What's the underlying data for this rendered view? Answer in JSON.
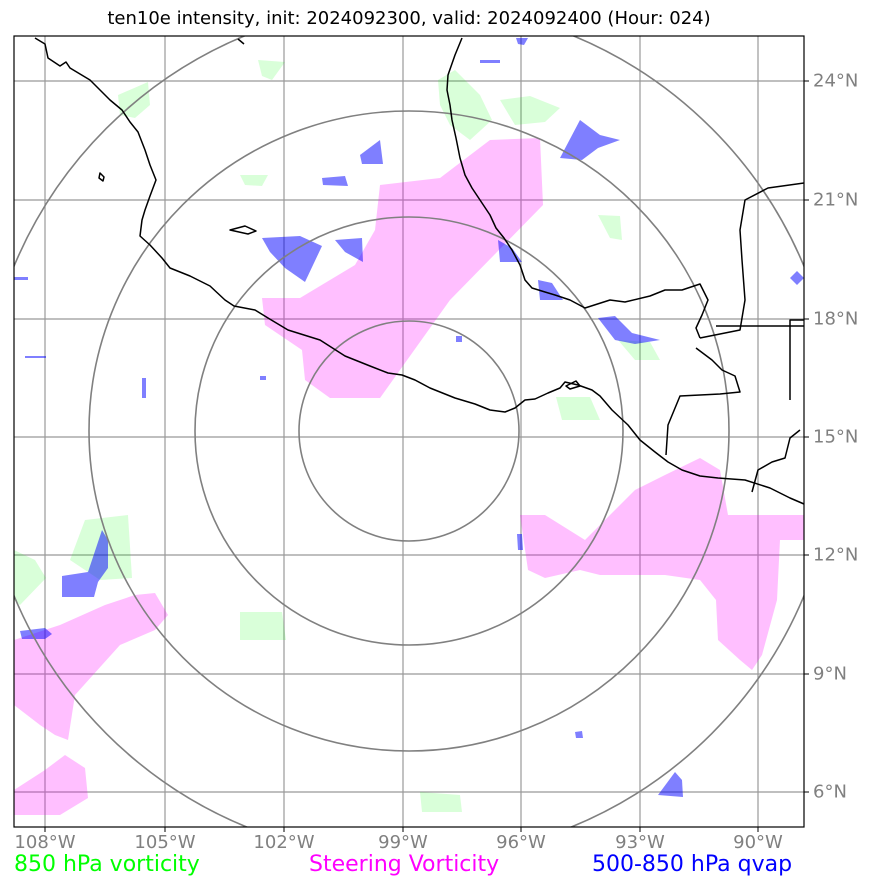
{
  "title": "ten10e intensity, init: 2024092300, valid: 2024092400 (Hour: 024)",
  "axes": {
    "lon_labels": [
      "108°W",
      "105°W",
      "102°W",
      "99°W",
      "96°W",
      "93°W",
      "90°W"
    ],
    "lat_labels": [
      "24°N",
      "21°N",
      "18°N",
      "15°N",
      "12°N",
      "9°N",
      "6°N"
    ]
  },
  "legend": {
    "vort850": "850 hPa vorticity",
    "steering": "Steering Vorticity",
    "qvap": "500-850 hPa qvap"
  },
  "colors": {
    "vort850": "#00ff00",
    "steering": "#ff00ff",
    "qvap": "#0000ff",
    "grid": "#808080",
    "coast": "#000000"
  }
}
